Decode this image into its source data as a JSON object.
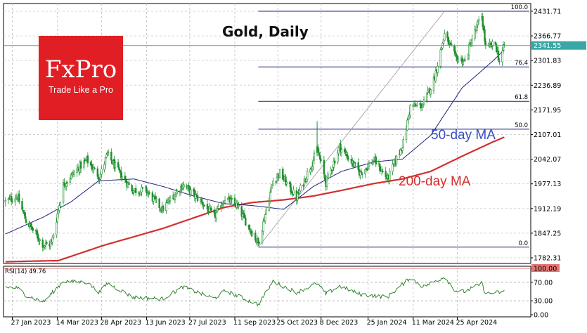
{
  "header": {
    "title": "Gold, Daily"
  },
  "logo": {
    "name": "FxPro",
    "tagline": "Trade Like a Pro"
  },
  "colors": {
    "candle_up": "#1f8f2e",
    "candle_down": "#1f8f2e",
    "ma50": "#1a237e",
    "ma200": "#d32f2f",
    "fib": "#1a237e",
    "current_price_line": "#3aa7a7",
    "rsi_line": "#1f7a1f",
    "logo_bg": "#e01e24",
    "top_marker": "#b71c1c"
  },
  "chart_data": [
    {
      "type": "candlestick",
      "title": "Gold, Daily",
      "x_tick_labels": [
        "27 Jan 2023",
        "14 Mar 2023",
        "28 Apr 2023",
        "13 Jun 2023",
        "27 Jul 2023",
        "11 Sep 2023",
        "25 Oct 2023",
        "8 Dec 2023",
        "25 Jan 2024",
        "11 Mar 2024",
        "25 Apr 2024"
      ],
      "y_tick_labels": [
        "2431.71",
        "2366.77",
        "2301.83",
        "2236.89",
        "2171.95",
        "2107.01",
        "2042.07",
        "1977.13",
        "1912.19",
        "1847.25",
        "1782.31"
      ],
      "y_ticks": [
        2431.71,
        2366.77,
        2301.83,
        2236.89,
        2171.95,
        2107.01,
        2042.07,
        1977.13,
        1912.19,
        1847.25,
        1782.31
      ],
      "ylim": [
        1767.5,
        2452.0
      ],
      "current_price": {
        "value": 2341.55,
        "label": "2341.55"
      },
      "indicators": [
        {
          "name": "50-day MA",
          "label": "50-day MA"
        },
        {
          "name": "200-day MA",
          "label": "200-day MA"
        }
      ],
      "fibonacci": {
        "low": 1810.5,
        "high": 2431.7,
        "levels": [
          {
            "label": "100.0",
            "ratio": 1.0
          },
          {
            "label": "76.4",
            "ratio": 0.764
          },
          {
            "label": "61.8",
            "ratio": 0.618
          },
          {
            "label": "50.0",
            "ratio": 0.5
          },
          {
            "label": "0.0",
            "ratio": 0.0
          }
        ]
      },
      "anchors": {
        "price": [
          [
            "2023-01-20",
            1930
          ],
          [
            "2023-02-01",
            1945
          ],
          [
            "2023-02-10",
            1880
          ],
          [
            "2023-02-28",
            1815
          ],
          [
            "2023-03-08",
            1820
          ],
          [
            "2023-03-20",
            1975
          ],
          [
            "2023-04-05",
            2020
          ],
          [
            "2023-04-13",
            2040
          ],
          [
            "2023-04-26",
            1995
          ],
          [
            "2023-05-04",
            2055
          ],
          [
            "2023-05-15",
            2010
          ],
          [
            "2023-05-30",
            1960
          ],
          [
            "2023-06-12",
            1960
          ],
          [
            "2023-06-29",
            1910
          ],
          [
            "2023-07-20",
            1975
          ],
          [
            "2023-08-08",
            1930
          ],
          [
            "2023-08-21",
            1890
          ],
          [
            "2023-09-01",
            1940
          ],
          [
            "2023-09-13",
            1920
          ],
          [
            "2023-10-05",
            1820
          ],
          [
            "2023-10-20",
            1985
          ],
          [
            "2023-10-27",
            2005
          ],
          [
            "2023-11-13",
            1940
          ],
          [
            "2023-11-30",
            2040
          ],
          [
            "2023-12-04",
            2070
          ],
          [
            "2023-12-13",
            1980
          ],
          [
            "2023-12-27",
            2075
          ],
          [
            "2024-01-17",
            2005
          ],
          [
            "2024-01-31",
            2040
          ],
          [
            "2024-02-14",
            1990
          ],
          [
            "2024-03-01",
            2085
          ],
          [
            "2024-03-08",
            2180
          ],
          [
            "2024-03-21",
            2185
          ],
          [
            "2024-04-01",
            2250
          ],
          [
            "2024-04-12",
            2370
          ],
          [
            "2024-04-23",
            2310
          ],
          [
            "2024-05-03",
            2300
          ],
          [
            "2024-05-10",
            2360
          ],
          [
            "2024-05-20",
            2420
          ],
          [
            "2024-05-24",
            2335
          ],
          [
            "2024-06-03",
            2345
          ],
          [
            "2024-06-07",
            2300
          ],
          [
            "2024-06-12",
            2341.55
          ]
        ],
        "ma50": [
          [
            "2023-01-20",
            1845
          ],
          [
            "2023-02-28",
            1890
          ],
          [
            "2023-03-28",
            1930
          ],
          [
            "2023-04-25",
            1985
          ],
          [
            "2023-05-31",
            1990
          ],
          [
            "2023-06-30",
            1970
          ],
          [
            "2023-07-31",
            1945
          ],
          [
            "2023-08-31",
            1925
          ],
          [
            "2023-09-29",
            1920
          ],
          [
            "2023-10-31",
            1910
          ],
          [
            "2023-11-30",
            1970
          ],
          [
            "2023-12-29",
            2010
          ],
          [
            "2024-01-31",
            2035
          ],
          [
            "2024-02-29",
            2042
          ],
          [
            "2024-03-29",
            2105
          ],
          [
            "2024-04-30",
            2230
          ],
          [
            "2024-05-31",
            2300
          ],
          [
            "2024-06-12",
            2330
          ]
        ],
        "ma200": [
          [
            "2023-01-20",
            1772
          ],
          [
            "2023-03-15",
            1775
          ],
          [
            "2023-04-30",
            1815
          ],
          [
            "2023-06-30",
            1860
          ],
          [
            "2023-08-31",
            1915
          ],
          [
            "2023-09-29",
            1928
          ],
          [
            "2023-10-31",
            1935
          ],
          [
            "2023-11-30",
            1945
          ],
          [
            "2023-12-29",
            1960
          ],
          [
            "2024-01-31",
            1978
          ],
          [
            "2024-02-29",
            1990
          ],
          [
            "2024-03-29",
            2010
          ],
          [
            "2024-04-30",
            2050
          ],
          [
            "2024-05-31",
            2087
          ],
          [
            "2024-06-12",
            2100
          ]
        ]
      }
    },
    {
      "type": "line",
      "title": "RSI(14) 49.76",
      "name": "RSI(14)",
      "value": 49.76,
      "y_tick_labels": [
        "100.00",
        "70.00",
        "30.00",
        "0.00"
      ],
      "y_ticks": [
        100,
        70,
        30,
        0
      ],
      "ylim": [
        0,
        100
      ],
      "anchors": [
        [
          "2023-01-20",
          60
        ],
        [
          "2023-02-01",
          58
        ],
        [
          "2023-02-10",
          42
        ],
        [
          "2023-02-28",
          28
        ],
        [
          "2023-03-20",
          72
        ],
        [
          "2023-04-13",
          70
        ],
        [
          "2023-04-26",
          48
        ],
        [
          "2023-05-04",
          68
        ],
        [
          "2023-05-30",
          38
        ],
        [
          "2023-06-29",
          34
        ],
        [
          "2023-07-20",
          60
        ],
        [
          "2023-08-21",
          35
        ],
        [
          "2023-09-01",
          52
        ],
        [
          "2023-10-05",
          22
        ],
        [
          "2023-10-20",
          72
        ],
        [
          "2023-11-13",
          48
        ],
        [
          "2023-12-04",
          68
        ],
        [
          "2023-12-13",
          45
        ],
        [
          "2023-12-27",
          62
        ],
        [
          "2024-01-17",
          44
        ],
        [
          "2024-02-14",
          38
        ],
        [
          "2024-03-08",
          80
        ],
        [
          "2024-03-21",
          60
        ],
        [
          "2024-04-12",
          82
        ],
        [
          "2024-04-23",
          52
        ],
        [
          "2024-05-03",
          50
        ],
        [
          "2024-05-20",
          68
        ],
        [
          "2024-05-24",
          45
        ],
        [
          "2024-06-12",
          49.76
        ]
      ]
    }
  ]
}
